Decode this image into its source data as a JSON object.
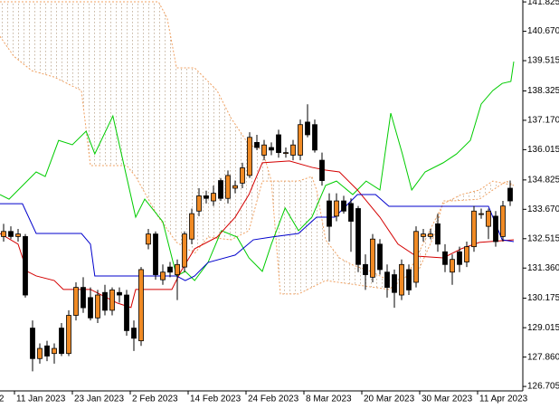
{
  "chart_data": {
    "type": "candlestick",
    "xlim": [
      -0.5,
      71.75
    ],
    "ylim": [
      126.53,
      141.9
    ],
    "yticks": [
      141.825,
      {
        "value": 140.67,
        "label": "140.670"
      },
      139.515,
      138.325,
      {
        "value": 137.17,
        "label": "137.170"
      },
      136.015,
      134.825,
      {
        "value": 133.67,
        "label": "133.670"
      },
      132.515,
      {
        "value": 131.36,
        "label": "131.360"
      },
      130.175,
      129.015,
      {
        "value": 127.86,
        "label": "127.860"
      },
      126.705
    ],
    "xticks": [
      {
        "value": -0.9,
        "label": "2"
      },
      {
        "value": 1.5,
        "label": "11 Jan 2023"
      },
      {
        "value": 9.5,
        "label": "23 Jan 2023"
      },
      {
        "value": 17.5,
        "label": "2 Feb 2023"
      },
      {
        "value": 25.5,
        "label": "14 Feb 2023"
      },
      {
        "value": 33.5,
        "label": "24 Feb 2023"
      },
      {
        "value": 41.5,
        "label": "8 Mar 2023"
      },
      {
        "value": 49.5,
        "label": "20 Mar 2023"
      },
      {
        "value": 57.5,
        "label": "30 Mar 2023"
      },
      {
        "value": 65.5,
        "label": "11 Apr 2023"
      }
    ],
    "up_color": "#f08a24",
    "down_color": "#000000",
    "cloud_color": "#c9b9a6",
    "x": [
      0,
      1,
      2,
      3,
      4,
      5,
      6,
      7,
      8,
      9,
      10,
      11,
      12,
      13,
      14,
      15,
      16,
      17,
      18,
      19,
      20,
      21,
      22,
      23,
      24,
      25,
      26,
      27,
      28,
      29,
      30,
      31,
      32,
      33,
      34,
      35,
      36,
      37,
      38,
      39,
      40,
      41,
      42,
      43,
      44,
      45,
      46,
      47,
      48,
      49,
      50,
      51,
      52,
      53,
      54,
      55,
      56,
      57,
      58,
      59,
      60,
      61,
      62,
      63,
      64,
      65,
      66,
      67,
      68,
      69,
      70
    ],
    "open": [
      132.6,
      132.8,
      132.6,
      132.6,
      129.0,
      127.8,
      128.3,
      128.0,
      129.0,
      128.0,
      129.5,
      130.6,
      130.2,
      129.4,
      130.4,
      129.7,
      130.4,
      130.3,
      129.0,
      128.5,
      132.3,
      132.7,
      130.9,
      131.4,
      131.1,
      131.4,
      132.5,
      133.6,
      134.2,
      134.0,
      134.8,
      134.1,
      134.5,
      134.7,
      135.0,
      136.3,
      135.8,
      136.1,
      136.6,
      135.9,
      135.8,
      135.8,
      137.1,
      137.0,
      135.6,
      134.0,
      133.4,
      134.0,
      133.9,
      133.7,
      131.5,
      131.0,
      132.3,
      131.2,
      131.1,
      130.3,
      131.3,
      130.8,
      132.6,
      132.6,
      133.1,
      132.0,
      131.2,
      132.0,
      131.6,
      132.2,
      133.5,
      133.0,
      133.4,
      132.6,
      134.5
    ],
    "high": [
      133.1,
      133.0,
      132.9,
      132.7,
      129.3,
      128.4,
      128.5,
      128.4,
      129.2,
      129.7,
      130.8,
      131.0,
      130.6,
      130.5,
      130.7,
      130.6,
      130.6,
      130.5,
      129.3,
      131.4,
      132.9,
      132.8,
      131.5,
      131.6,
      131.7,
      132.8,
      133.7,
      134.5,
      134.4,
      134.6,
      134.9,
      135.2,
      134.8,
      135.5,
      136.7,
      136.6,
      136.4,
      136.3,
      136.8,
      136.1,
      136.4,
      137.2,
      137.8,
      137.2,
      135.9,
      134.3,
      134.3,
      134.2,
      134.1,
      133.8,
      131.9,
      132.7,
      132.5,
      131.5,
      131.3,
      131.7,
      131.5,
      133.0,
      132.9,
      132.9,
      133.5,
      132.3,
      131.9,
      132.2,
      132.4,
      133.8,
      133.7,
      133.7,
      133.6,
      134.0,
      134.8
    ],
    "low": [
      132.4,
      132.5,
      132.4,
      130.2,
      127.3,
      127.6,
      127.7,
      127.6,
      127.9,
      127.9,
      129.3,
      129.6,
      129.3,
      129.2,
      129.5,
      129.5,
      130.0,
      128.7,
      128.1,
      128.3,
      132.1,
      130.9,
      130.7,
      131.0,
      130.1,
      131.2,
      132.3,
      133.4,
      133.9,
      133.8,
      134.0,
      133.9,
      134.3,
      134.5,
      134.9,
      136.0,
      135.6,
      135.8,
      135.7,
      135.7,
      135.6,
      135.6,
      136.5,
      135.9,
      134.6,
      132.4,
      133.2,
      133.5,
      132.0,
      131.2,
      130.5,
      130.8,
      131.1,
      130.2,
      129.8,
      130.1,
      130.3,
      130.6,
      132.4,
      132.5,
      132.0,
      131.2,
      130.7,
      131.2,
      131.4,
      132.0,
      133.3,
      132.5,
      132.2,
      132.4,
      133.8
    ],
    "close": [
      132.8,
      132.6,
      132.7,
      130.3,
      127.8,
      128.2,
      127.9,
      128.2,
      128.0,
      129.5,
      130.6,
      129.8,
      129.4,
      130.3,
      129.7,
      130.5,
      130.3,
      128.9,
      128.6,
      131.3,
      132.7,
      131.1,
      131.2,
      131.2,
      131.5,
      132.7,
      133.5,
      134.2,
      134.1,
      134.3,
      134.1,
      135.0,
      134.6,
      135.3,
      136.5,
      136.1,
      136.2,
      136.0,
      135.9,
      135.9,
      136.2,
      137.0,
      136.6,
      136.0,
      134.8,
      133.0,
      134.0,
      133.6,
      133.2,
      131.5,
      131.1,
      132.5,
      131.3,
      130.6,
      130.4,
      131.5,
      130.5,
      132.8,
      132.7,
      132.7,
      132.3,
      131.5,
      131.7,
      131.5,
      132.2,
      133.6,
      133.5,
      133.6,
      132.4,
      133.8,
      134.0
    ],
    "lines": [
      {
        "color": "#f0a060",
        "dashed": true,
        "x": [
          -0.5,
          1.4,
          3.9,
          7,
          10.75,
          12,
          17,
          18.25,
          21.4,
          23.9,
          26.4,
          28.25,
          31.4,
          33.9,
          35.75,
          40.75,
          42.6,
          43.25,
          44.5,
          46.4,
          48.25,
          50.75,
          53.25,
          57,
          59.5,
          60.75,
          62,
          65.75,
          67.6,
          69.5,
          70.5
        ],
        "values": [
          140.47,
          139.69,
          139.12,
          138.87,
          138.34,
          135.39,
          135.39,
          134.96,
          133.36,
          132.37,
          131.94,
          132.58,
          132.47,
          132.83,
          134.78,
          134.78,
          134.96,
          134.43,
          132.47,
          131.76,
          131.48,
          131.23,
          130.87,
          131.05,
          132.65,
          134.0,
          134.0,
          134.07,
          134.43,
          134.78,
          134.61
        ]
      },
      {
        "color": "#f0a060",
        "dashed": true,
        "x": [
          -0.5,
          21.4,
          22.6,
          23.9,
          26.4,
          29.5,
          31.4,
          33.9,
          35.75,
          37,
          38.25,
          40.75,
          44.5,
          53.25,
          55.75,
          58.25,
          60.75,
          63.25,
          65.75,
          67.6,
          70.5
        ],
        "values": [
          141.83,
          141.83,
          141.19,
          139.23,
          139.23,
          138.34,
          137.27,
          136.21,
          136.03,
          134.78,
          130.34,
          130.34,
          130.87,
          130.52,
          131.05,
          132.47,
          133.89,
          134.25,
          134.43,
          134.78,
          134.61
        ]
      },
      {
        "color": "#00cc00",
        "dashed": false,
        "x": [
          -0.5,
          0.75,
          4.5,
          5.75,
          7.6,
          9.5,
          11.4,
          12.6,
          15.1,
          18.25,
          19.5,
          22,
          23.9,
          25.1,
          26.4,
          28.25,
          30.1,
          32.25,
          33.9,
          35.75,
          37,
          38.9,
          40.75,
          42.6,
          44.5,
          46,
          48.25,
          50.1,
          52,
          53.5,
          55.1,
          56.4,
          58.25,
          60.75,
          62.6,
          64.5,
          66,
          67.6,
          68.9,
          70.1,
          70.5
        ],
        "values": [
          134.25,
          134.07,
          135.14,
          134.96,
          136.38,
          136.21,
          136.74,
          135.85,
          137.34,
          133.36,
          134.07,
          133.18,
          131.05,
          131.23,
          130.87,
          131.58,
          132.83,
          132.58,
          131.76,
          131.23,
          132.3,
          133.72,
          132.83,
          133.36,
          134.61,
          134.78,
          134.25,
          134.78,
          134.43,
          137.45,
          135.85,
          134.43,
          135.14,
          135.5,
          135.85,
          136.38,
          137.81,
          138.34,
          138.62,
          138.7,
          139.48
        ]
      },
      {
        "color": "#d40000",
        "dashed": false,
        "x": [
          -0.5,
          2,
          3.25,
          4.5,
          7,
          8.25,
          12,
          15.75,
          17.6,
          18.25,
          23.25,
          24.5,
          26.4,
          29.5,
          32,
          33.9,
          35.75,
          39.5,
          42.6,
          44.5,
          46.4,
          48.9,
          52,
          54.5,
          57,
          60.75,
          63.25,
          65.75,
          70.5
        ],
        "values": [
          132.72,
          132.3,
          131.23,
          131.05,
          130.87,
          130.52,
          130.52,
          129.98,
          129.81,
          130.52,
          130.52,
          131.23,
          132.12,
          132.58,
          133.36,
          134.25,
          135.5,
          135.57,
          135.32,
          135.21,
          135.14,
          134.43,
          133.36,
          132.3,
          131.83,
          131.76,
          132.12,
          132.37,
          132.47
        ]
      },
      {
        "color": "#0000cc",
        "dashed": false,
        "x": [
          -0.5,
          2.6,
          4.5,
          10.75,
          12,
          12.6,
          23.9,
          25.1,
          26.4,
          28.25,
          32,
          34.5,
          37,
          40.75,
          43.25,
          45.75,
          48.9,
          51.4,
          53.25,
          67,
          68.9,
          70.5
        ],
        "values": [
          133.89,
          133.89,
          132.72,
          132.72,
          132.3,
          131.05,
          131.05,
          130.87,
          131.05,
          131.58,
          131.87,
          132.47,
          132.58,
          132.72,
          133.36,
          133.36,
          134.25,
          134.25,
          133.79,
          133.79,
          132.47,
          132.4
        ]
      }
    ]
  }
}
